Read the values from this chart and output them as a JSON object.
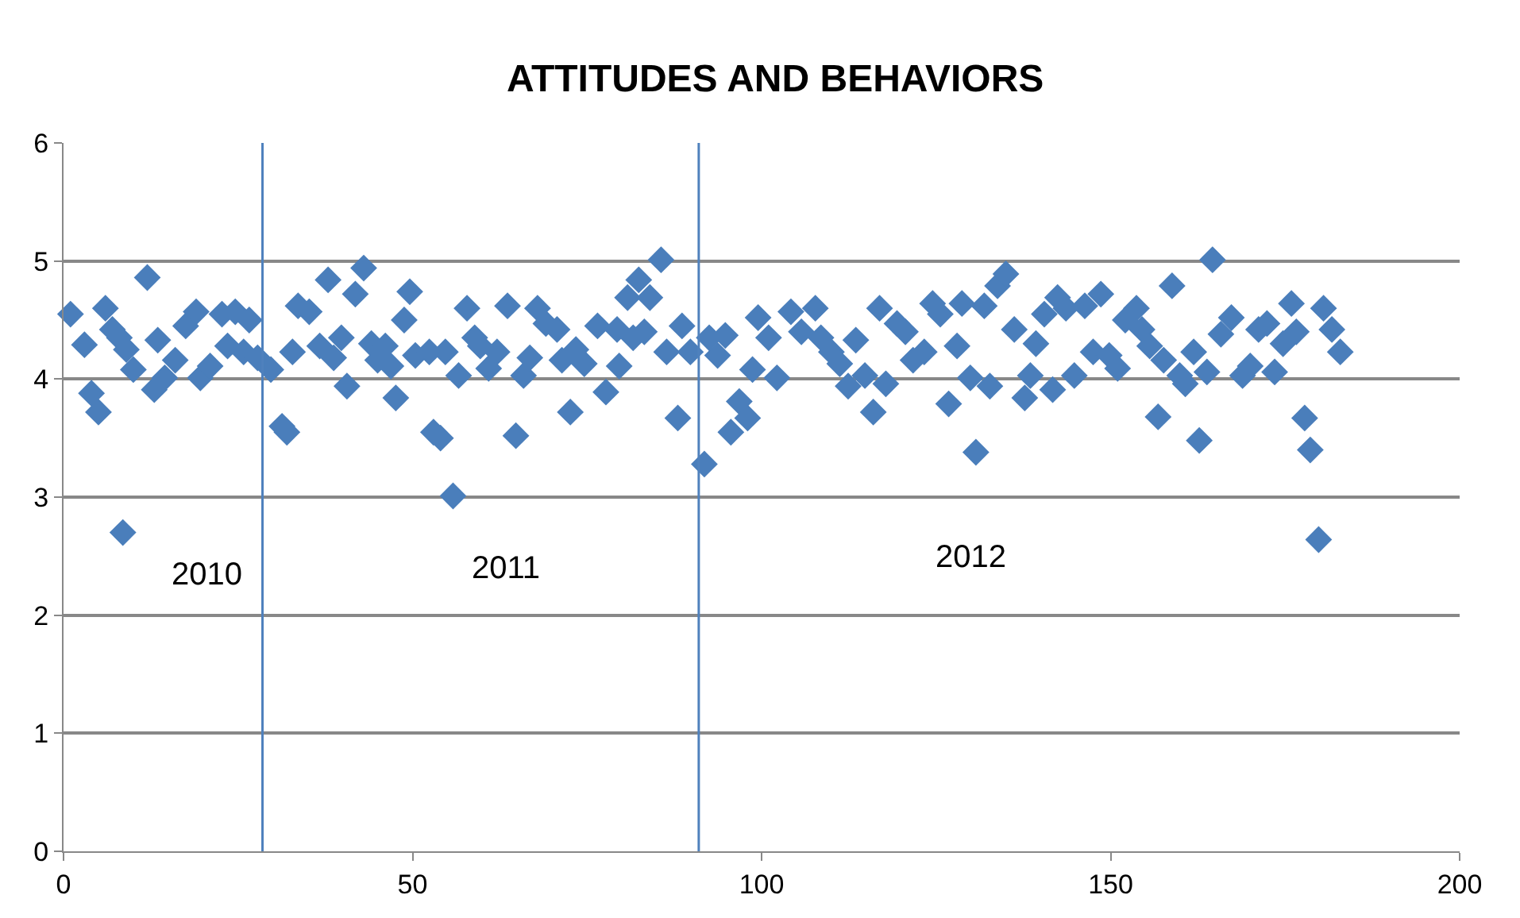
{
  "chart_data": {
    "type": "scatter",
    "title": "ATTITUDES AND BEHAVIORS",
    "x": [
      1,
      3,
      4,
      5,
      6,
      7,
      8,
      8.5,
      9,
      10,
      12,
      13,
      13.5,
      14.5,
      16,
      17.5,
      19,
      19.6,
      21,
      22.7,
      23.5,
      24.6,
      25.8,
      26.6,
      27.8,
      29.7,
      31.3,
      32,
      32.8,
      33.6,
      35.2,
      36.7,
      37.9,
      38.7,
      39.8,
      40.6,
      41.8,
      43,
      44.1,
      45,
      46.1,
      46.9,
      47.6,
      48.8,
      49.6,
      50.4,
      52.4,
      53,
      54,
      54.7,
      55.8,
      56.6,
      57.8,
      58.9,
      59.7,
      60.9,
      62.1,
      63.6,
      64.8,
      65.9,
      66.8,
      67.9,
      69.1,
      70.7,
      71.4,
      72.6,
      73.4,
      74.6,
      76.5,
      77.7,
      79.3,
      79.6,
      80.8,
      81.6,
      82.4,
      83.2,
      84,
      85.6,
      86.4,
      88,
      88.6,
      89.8,
      91.8,
      92.5,
      93.7,
      94.8,
      95.6,
      96.8,
      98,
      98.7,
      99.5,
      101,
      102.2,
      104.2,
      105.7,
      107.7,
      108.5,
      110,
      111.2,
      112.4,
      113.5,
      114.8,
      116,
      116.9,
      117.8,
      119.4,
      120.6,
      121.7,
      123.3,
      124.5,
      125.6,
      126.8,
      128,
      128.7,
      129.9,
      130.7,
      131.9,
      132.7,
      133.8,
      135,
      136.2,
      137.7,
      138.5,
      139.3,
      140.5,
      141.7,
      142.4,
      143.6,
      144.8,
      146.3,
      147.5,
      148.6,
      149.8,
      151,
      152.1,
      153.7,
      154.5,
      155.6,
      156.8,
      157.6,
      158.8,
      159.9,
      160.7,
      161.9,
      162.7,
      163.8,
      164.6,
      165.8,
      167.3,
      168.9,
      170,
      171.2,
      172.4,
      173.5,
      174.7,
      175.9,
      176.6,
      177.8,
      178.6,
      179.8,
      180.5,
      181.7,
      182.9
    ],
    "values": [
      4.55,
      4.29,
      3.88,
      3.72,
      4.6,
      4.42,
      4.35,
      2.7,
      4.25,
      4.08,
      4.86,
      3.91,
      4.33,
      4.01,
      4.16,
      4.45,
      4.57,
      4.01,
      4.11,
      4.55,
      4.28,
      4.57,
      4.23,
      4.5,
      4.18,
      4.08,
      3.6,
      3.55,
      4.23,
      4.62,
      4.57,
      4.28,
      4.84,
      4.18,
      4.35,
      3.94,
      4.72,
      4.94,
      4.3,
      4.16,
      4.28,
      4.11,
      3.84,
      4.5,
      4.74,
      4.2,
      4.23,
      3.55,
      3.5,
      4.23,
      3.01,
      4.03,
      4.6,
      4.35,
      4.28,
      4.09,
      4.23,
      4.62,
      3.52,
      4.03,
      4.18,
      4.6,
      4.47,
      4.42,
      4.16,
      3.72,
      4.25,
      4.13,
      4.45,
      3.89,
      4.42,
      4.11,
      4.69,
      4.35,
      4.84,
      4.4,
      4.69,
      5.01,
      4.23,
      3.67,
      4.45,
      4.23,
      3.28,
      4.35,
      4.2,
      4.37,
      3.55,
      3.81,
      3.67,
      4.08,
      4.52,
      4.35,
      4.01,
      4.57,
      4.4,
      4.6,
      4.35,
      4.23,
      4.13,
      3.94,
      4.33,
      4.03,
      3.72,
      4.6,
      3.96,
      4.47,
      4.4,
      4.16,
      4.23,
      4.64,
      4.55,
      3.79,
      4.28,
      4.64,
      4.01,
      3.38,
      4.62,
      3.94,
      4.79,
      4.89,
      4.42,
      3.84,
      4.03,
      4.3,
      4.55,
      3.91,
      4.69,
      4.6,
      4.03,
      4.62,
      4.23,
      4.72,
      4.2,
      4.09,
      4.5,
      4.6,
      4.42,
      4.28,
      3.68,
      4.16,
      4.79,
      4.03,
      3.96,
      4.23,
      3.48,
      4.06,
      5.01,
      4.38,
      4.52,
      4.03,
      4.11,
      4.42,
      4.47,
      4.06,
      4.3,
      4.64,
      4.4,
      3.67,
      3.4,
      2.64,
      4.6,
      4.42,
      4.23
    ],
    "color": "#4a7ebb",
    "marker": "diamond",
    "xlim": [
      0,
      200
    ],
    "xticks": [
      0,
      50,
      100,
      150,
      200
    ],
    "ylim": [
      0,
      6
    ],
    "yticks": [
      0,
      1,
      2,
      3,
      4,
      5,
      6
    ],
    "grid": "y",
    "ref_lines": [
      {
        "axis": "x",
        "value": 28.5,
        "color": "#4f81bd"
      },
      {
        "axis": "x",
        "value": 91,
        "color": "#4f81bd"
      }
    ],
    "annotations": [
      "2010",
      "2011",
      "2012"
    ]
  }
}
